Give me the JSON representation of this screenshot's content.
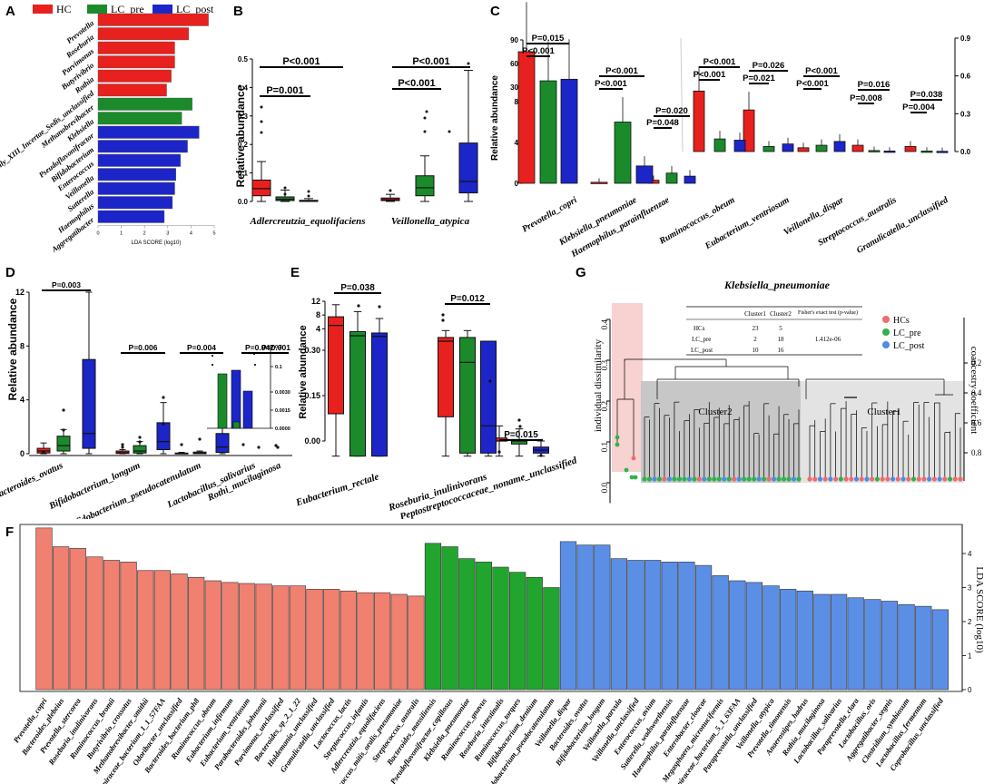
{
  "colors": {
    "hc": "#e8201e",
    "lc_pre": "#1b8a2b",
    "lc_post": "#1c25c8",
    "f_hc": "#f08070",
    "f_pre": "#22a52e",
    "f_post": "#5b8fe6",
    "g_hc": "#f26b6b",
    "g_pre": "#2eb34c",
    "g_post": "#4b8de8",
    "g_shade_hc": "#f6c6c6",
    "g_shade_c2": "#c7c7c7",
    "g_shade_c1": "#e3e3e3"
  },
  "panel_letters": {
    "a": "A",
    "b": "B",
    "c": "C",
    "d": "D",
    "e": "E",
    "f": "F",
    "g": "G"
  },
  "legend_top": [
    "HC",
    "LC_pre",
    "LC_post"
  ],
  "chart_data": [
    {
      "id": "A",
      "type": "bar",
      "orientation": "horizontal",
      "xlabel": "LDA SCORE (log10)",
      "xlim": [
        0,
        5
      ],
      "ticks": [
        "0",
        "1",
        "2",
        "3",
        "4",
        "5"
      ],
      "categories": [
        "Prevotella",
        "Roseburia",
        "Parvimonas",
        "Butyrivibrio",
        "Rothia",
        "Clostridiales_Family_XIII_Incertae_Sedis_unclassified",
        "Methanobrevibacter",
        "Klebsiella",
        "Pseudoflavonifractor",
        "Bifidobacterium",
        "Enterococcus",
        "Veillonella",
        "Sutterella",
        "Haemophilus",
        "Aggregatibacter"
      ],
      "values": [
        4.75,
        3.9,
        3.3,
        3.3,
        3.15,
        2.95,
        4.05,
        3.6,
        4.35,
        3.85,
        3.55,
        3.35,
        3.3,
        3.2,
        2.85
      ],
      "groups": [
        "HC",
        "HC",
        "HC",
        "HC",
        "HC",
        "HC",
        "LC_pre",
        "LC_pre",
        "LC_post",
        "LC_post",
        "LC_post",
        "LC_post",
        "LC_post",
        "LC_post",
        "LC_post"
      ]
    },
    {
      "id": "B",
      "type": "box",
      "ylabel": "Relative abundance",
      "ylim": [
        0,
        0.5
      ],
      "yticks": [
        "0.0",
        "0.1",
        "0.2",
        "0.3",
        "0.4",
        "0.5"
      ],
      "categories": [
        "Adlercreutzia_equolifaciens",
        "Veillonella_atypica"
      ],
      "pvalues": [
        "P=0.001",
        "P<0.001",
        "P<0.001",
        "P<0.001"
      ],
      "series": [
        {
          "name": "HC",
          "boxes": [
            {
              "q1": 0.02,
              "med": 0.045,
              "q3": 0.075,
              "lo": 0.0,
              "hi": 0.14
            },
            {
              "q1": 0.003,
              "med": 0.006,
              "q3": 0.012,
              "lo": 0.0,
              "hi": 0.025
            }
          ]
        },
        {
          "name": "LC_pre",
          "boxes": [
            {
              "q1": 0.003,
              "med": 0.008,
              "q3": 0.016,
              "lo": 0.0,
              "hi": 0.04
            },
            {
              "q1": 0.02,
              "med": 0.048,
              "q3": 0.09,
              "lo": 0.0,
              "hi": 0.16
            }
          ]
        },
        {
          "name": "LC_post",
          "boxes": [
            {
              "q1": 0.0,
              "med": 0.002,
              "q3": 0.004,
              "lo": 0.0,
              "hi": 0.01
            },
            {
              "q1": 0.03,
              "med": 0.07,
              "q3": 0.205,
              "lo": 0.0,
              "hi": 0.46
            }
          ]
        }
      ]
    },
    {
      "id": "C",
      "type": "bar",
      "ylabel": "Relative abundance",
      "yticks_left": [
        "0",
        "4",
        "8",
        "30",
        "60",
        "90"
      ],
      "yticks_right": [
        "0.0",
        "0.3",
        "0.6",
        "0.9"
      ],
      "categories": [
        "Prevotella_copri",
        "Klebsiella_pneumoniae",
        "Haemophilus_parainfluenzae",
        "Ruminococcus_obeum",
        "Eubacterium_ventriosum",
        "Veillonella_dispar",
        "Streptococcus_australis",
        "Granulicatella_unclassified"
      ],
      "pvalues": [
        [
          "P=0.015",
          "P<0.001"
        ],
        [
          "P<0.001",
          "P<0.001"
        ],
        [
          "P=0.020",
          "P=0.048"
        ],
        [
          "P<0.001",
          "P<0.001"
        ],
        [
          "P=0.026",
          "P=0.021"
        ],
        [
          "P<0.001",
          "P<0.001"
        ],
        [
          "P=0.016",
          "P=0.008"
        ],
        [
          "P=0.038",
          "P=0.004"
        ]
      ],
      "series": [
        {
          "name": "HC",
          "values": [
            75,
            0.1,
            0.3,
            0.48,
            0.33,
            0.03,
            0.05,
            0.04
          ]
        },
        {
          "name": "LC_pre",
          "values": [
            38,
            6.0,
            1.0,
            0.1,
            0.04,
            0.05,
            0.008,
            0.004
          ]
        },
        {
          "name": "LC_post",
          "values": [
            40,
            1.7,
            0.7,
            0.09,
            0.06,
            0.08,
            0.004,
            0.002
          ]
        }
      ]
    },
    {
      "id": "D",
      "type": "box",
      "ylabel": "Relative abundance",
      "ylim": [
        0,
        12
      ],
      "yticks": [
        "0",
        "4",
        "8",
        "12"
      ],
      "inset_ticks": [
        "0.0000",
        "0.0015",
        "0.0030",
        "0.1",
        "0.2"
      ],
      "categories": [
        "Bacteroides_ovatus",
        "Bifidobacterium_longum",
        "Bifidobacterium_pseudocatenulatum",
        "Lactobacillus_salivarius",
        "Rothi_mucilaginosa"
      ],
      "pvalues": [
        "P=0.003",
        "P=0.006",
        "P=0.004",
        "P=0.047",
        "P=0.001"
      ],
      "series": [
        {
          "name": "HC",
          "boxes": [
            {
              "q1": 0.05,
              "med": 0.2,
              "q3": 0.4,
              "lo": 0,
              "hi": 0.8
            },
            {
              "q1": 0.02,
              "med": 0.08,
              "q3": 0.2,
              "lo": 0,
              "hi": 0.3
            },
            {
              "q1": 0.0,
              "med": 0.02,
              "q3": 0.05,
              "lo": 0,
              "hi": 0.1
            },
            {
              "q1": 0,
              "med": 0.005,
              "q3": 0.01,
              "lo": 0,
              "hi": 0.02
            },
            {
              "q1": 0,
              "med": 0.005,
              "q3": 0.01,
              "lo": 0,
              "hi": 0.02
            }
          ]
        },
        {
          "name": "LC_pre",
          "boxes": [
            {
              "q1": 0.2,
              "med": 0.6,
              "q3": 1.3,
              "lo": 0,
              "hi": 1.8
            },
            {
              "q1": 0.05,
              "med": 0.2,
              "q3": 0.6,
              "lo": 0,
              "hi": 0.9
            },
            {
              "q1": 0.0,
              "med": 0.05,
              "q3": 0.12,
              "lo": 0,
              "hi": 0.2
            },
            {
              "q1": 0,
              "med": 0.005,
              "q3": 0.01,
              "lo": 0,
              "hi": 0.02
            },
            {
              "q1": 0,
              "med": 0.005,
              "q3": 0.01,
              "lo": 0,
              "hi": 0.02
            }
          ]
        },
        {
          "name": "LC_post",
          "boxes": [
            {
              "q1": 0.4,
              "med": 1.5,
              "q3": 7.0,
              "lo": 0,
              "hi": 12
            },
            {
              "q1": 0.3,
              "med": 0.9,
              "q3": 2.3,
              "lo": 0,
              "hi": 3.8
            },
            {
              "q1": 0.1,
              "med": 0.5,
              "q3": 1.5,
              "lo": 0,
              "hi": 3.3
            },
            {
              "q1": 0,
              "med": 0.005,
              "q3": 0.01,
              "lo": 0,
              "hi": 0.02
            },
            {
              "q1": 0,
              "med": 0.005,
              "q3": 0.01,
              "lo": 0,
              "hi": 0.02
            }
          ]
        }
      ]
    },
    {
      "id": "E",
      "type": "box",
      "ylabel": "Relative abundance",
      "yticks": [
        "0.00",
        "0.15",
        "0.30",
        "4",
        "8",
        "12"
      ],
      "categories": [
        "Eubacterium_rectale",
        "Roseburia_inulinivorans",
        "Peptostreptococcaceae_noname_unclassified"
      ],
      "pvalues": [
        "P=0.038",
        "P=0.012",
        "P=0.015"
      ],
      "series": [
        {
          "name": "HC",
          "boxes": [
            {
              "q1": 0.09,
              "med": 5.0,
              "q3": 7.5,
              "lo": -0.05,
              "hi": 11
            },
            {
              "q1": 0.08,
              "med": 0.33,
              "q3": 1.5,
              "lo": -0.05,
              "hi": 3.5
            },
            {
              "q1": 0.0,
              "med": 0.0,
              "q3": 0.01,
              "lo": -0.05,
              "hi": 0.05
            }
          ]
        },
        {
          "name": "LC_pre",
          "boxes": [
            {
              "q1": -0.05,
              "med": 2.0,
              "q3": 3.2,
              "lo": -0.05,
              "hi": 9
            },
            {
              "q1": -0.04,
              "med": 0.26,
              "q3": 1.5,
              "lo": -0.05,
              "hi": 3.5
            },
            {
              "q1": -0.01,
              "med": 0.0,
              "q3": 0.005,
              "lo": -0.05,
              "hi": 0.04
            }
          ]
        },
        {
          "name": "LC_post",
          "boxes": [
            {
              "q1": -0.05,
              "med": 1.8,
              "q3": 2.8,
              "lo": -0.05,
              "hi": 7
            },
            {
              "q1": -0.04,
              "med": 0.05,
              "q3": 0.33,
              "lo": -0.05,
              "hi": 0.33
            },
            {
              "q1": -0.04,
              "med": -0.03,
              "q3": -0.02,
              "lo": -0.05,
              "hi": 0.0
            }
          ]
        }
      ]
    },
    {
      "id": "F",
      "type": "bar",
      "ylabel": "LDA SCORE (log10)",
      "ylim": [
        0,
        4.8
      ],
      "yticks": [
        "0",
        "1",
        "2",
        "3",
        "4"
      ],
      "categories": [
        "Prevotella_copri",
        "Bacteroides_plebeius",
        "Prevotella_stercorea",
        "Roseburia_inulinivorans",
        "Ruminococcus_bromii",
        "Butyrivibrio_crossotus",
        "Methanobrevibacter_smithii",
        "Lachnospiraceae_bacterium_1_1_57FAA",
        "Odoribacter_unclassified",
        "Bacteroides_bacterium_ph8",
        "Ruminococcus_obeum",
        "Eubacterium_infirmum",
        "Eubacterium_ventriosum",
        "Parabacteroides_johnsonii",
        "Parvimonas_unclassified",
        "Bacteroides_sp_2_1_22",
        "Holdemania_unclassified",
        "Granulicatella_unclassified",
        "Lactococcus_lactis",
        "Streptococcus_infantis",
        "Adlercreutzia_equolifaciens",
        "Streptococcus_mitis_oralis_pneumoniae",
        "Streptococcus_australis",
        "Bacteroides_massiliensis",
        "Pseudoflavonifractor_capillosus",
        "Klebsiella_pneumoniae",
        "Ruminococcus_gnavus",
        "Roseburia_intestinalis",
        "Ruminococcus_torques",
        "Bifidobacterium_dentium",
        "Bifidobacterium_pseudocatenulatum",
        "Veillonella_dispar",
        "Bacteroides_ovatus",
        "Bifidobacterium_longum",
        "Veillonella_parvula",
        "Veillonella_unclassified",
        "Enterococcus_avium",
        "Sutterella_wadsworthensis",
        "Haemophilus_parainfluenzae",
        "Enterobacter_cloacae",
        "Megasphaera_micronuciformis",
        "Lachnospiraceae_bacterium_5_1_63FAA",
        "Paraprevotella_unclassified",
        "Veillonella_atypica",
        "Prevotella_timonensis",
        "Anaerostipes_hadrus",
        "Rothia_mucilaginosa",
        "Lactobacillus_salivarius",
        "Paraprevotella_clara",
        "Lactobacillus_oris",
        "Aggregatibacter_segnis",
        "Clostridium_symbiosum",
        "Lactobacillus_fermentum",
        "Coprobacillus_unclassified"
      ],
      "values": [
        4.75,
        4.2,
        4.15,
        3.9,
        3.8,
        3.75,
        3.5,
        3.5,
        3.4,
        3.3,
        3.2,
        3.15,
        3.12,
        3.1,
        3.05,
        3.05,
        2.95,
        2.95,
        2.9,
        2.85,
        2.85,
        2.8,
        2.75,
        4.3,
        4.2,
        3.85,
        3.75,
        3.6,
        3.45,
        3.3,
        3.0,
        4.35,
        4.25,
        4.25,
        3.85,
        3.8,
        3.8,
        3.75,
        3.75,
        3.65,
        3.35,
        3.2,
        3.15,
        3.05,
        2.95,
        2.9,
        2.8,
        2.8,
        2.7,
        2.65,
        2.6,
        2.5,
        2.45,
        2.35
      ],
      "groups_split": [
        23,
        31
      ]
    }
  ],
  "panel_g": {
    "title": "Klebsiella_pneumoniae",
    "ylabel_left": "individual dissimilarity",
    "ylabel_right": "coancestry coefficient",
    "yticks_left": [
      "0.0",
      "0.1",
      "0.2",
      "0.3",
      "0.4"
    ],
    "yticks_right": [
      "0.2",
      "0.4",
      "0.6",
      "0.8"
    ],
    "cluster2": "Cluster2",
    "cluster1": "Cluster1",
    "legend": [
      "HCs",
      "LC_pre",
      "LC_post"
    ],
    "table_headers": [
      "",
      "Cluster1",
      "Cluster2",
      "Fisher's exact test (p-value)"
    ],
    "table_rows": [
      [
        "HCs",
        "23",
        "5",
        ""
      ],
      [
        "LC_pre",
        "2",
        "18",
        "1.412e-06"
      ],
      [
        "LC_post",
        "10",
        "16",
        ""
      ]
    ]
  }
}
